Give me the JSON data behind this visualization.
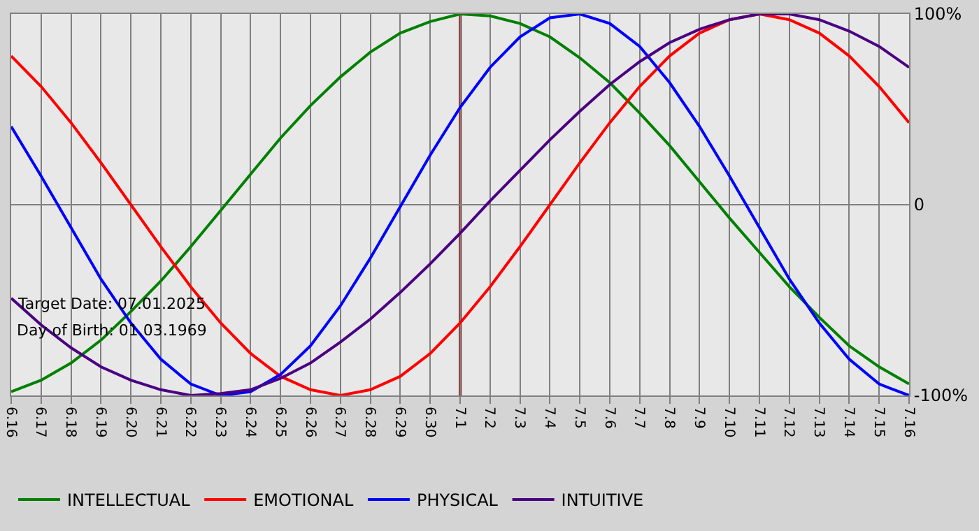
{
  "chart_data": {
    "type": "line",
    "categories": [
      "6.16",
      "6.17",
      "6.18",
      "6.19",
      "6.20",
      "6.21",
      "6.22",
      "6.23",
      "6.24",
      "6.25",
      "6.26",
      "6.27",
      "6.28",
      "6.29",
      "6.30",
      "7.1",
      "7.2",
      "7.3",
      "7.4",
      "7.5",
      "7.6",
      "7.7",
      "7.8",
      "7.9",
      "7.10",
      "7.11",
      "7.12",
      "7.13",
      "7.14",
      "7.15",
      "7.16"
    ],
    "series": [
      {
        "name": "INTELLECTUAL",
        "color": "#008000",
        "values": [
          -98,
          -92,
          -83,
          -71,
          -56,
          -40,
          -22,
          -3,
          16,
          35,
          52,
          67,
          80,
          90,
          96,
          100,
          99,
          95,
          88,
          77,
          64,
          48,
          31,
          12,
          -7,
          -25,
          -43,
          -59,
          -74,
          -85,
          -94
        ]
      },
      {
        "name": "EMOTIONAL",
        "color": "#ff0000",
        "values": [
          78,
          62,
          43,
          22,
          0,
          -22,
          -43,
          -62,
          -78,
          -90,
          -97,
          -100,
          -97,
          -90,
          -78,
          -62,
          -43,
          -22,
          0,
          22,
          43,
          62,
          78,
          90,
          97,
          100,
          97,
          90,
          78,
          62,
          43
        ]
      },
      {
        "name": "PHYSICAL",
        "color": "#0000ff",
        "values": [
          41,
          15,
          -12,
          -39,
          -62,
          -81,
          -94,
          -100,
          -98,
          -89,
          -74,
          -53,
          -28,
          -1,
          26,
          51,
          72,
          88,
          98,
          100,
          95,
          83,
          64,
          41,
          15,
          -12,
          -39,
          -62,
          -81,
          -94,
          -100
        ]
      },
      {
        "name": "INTUITIVE",
        "color": "#4b0082",
        "values": [
          -49,
          -63,
          -75,
          -85,
          -92,
          -97,
          -100,
          -99,
          -97,
          -91,
          -83,
          -72,
          -60,
          -46,
          -31,
          -15,
          2,
          18,
          34,
          49,
          63,
          75,
          85,
          92,
          97,
          100,
          100,
          97,
          91,
          83,
          72
        ]
      }
    ],
    "ylim": [
      -100,
      100
    ],
    "yticks": [
      {
        "value": 100,
        "label": "100%"
      },
      0,
      {
        "value": -100,
        "label": "-100%"
      }
    ],
    "grid": true,
    "legend": "bottom",
    "marker": "none",
    "line_style": "solid",
    "ref_lines": [
      {
        "axis": "x",
        "value": "7.1",
        "color": "#800000"
      }
    ],
    "annotations": [
      "Target Date: 07.01.2025",
      "Day of Birth: 01.03.1969"
    ]
  }
}
